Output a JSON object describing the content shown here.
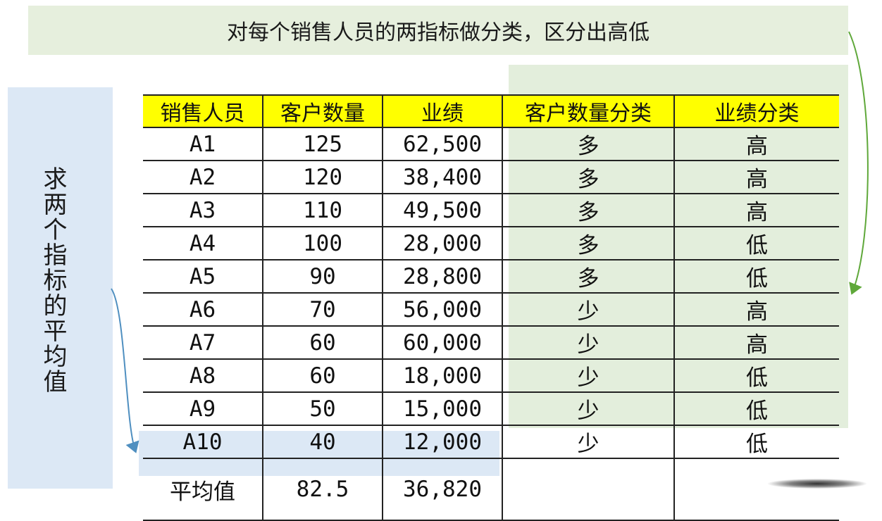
{
  "title": "对每个销售人员的两指标做分类，区分出高低",
  "side_note": "求两个指标的平均值",
  "table": {
    "headers": [
      "销售人员",
      "客户数量",
      "业绩",
      "客户数量分类",
      "业绩分类"
    ],
    "rows": [
      [
        "A1",
        "125",
        "62,500",
        "多",
        "高"
      ],
      [
        "A2",
        "120",
        "38,400",
        "多",
        "高"
      ],
      [
        "A3",
        "110",
        "49,500",
        "多",
        "高"
      ],
      [
        "A4",
        "100",
        "28,000",
        "多",
        "低"
      ],
      [
        "A5",
        "90",
        "28,800",
        "多",
        "低"
      ],
      [
        "A6",
        "70",
        "56,000",
        "少",
        "高"
      ],
      [
        "A7",
        "60",
        "60,000",
        "少",
        "高"
      ],
      [
        "A8",
        "60",
        "18,000",
        "少",
        "低"
      ],
      [
        "A9",
        "50",
        "15,000",
        "少",
        "低"
      ],
      [
        "A10",
        "40",
        "12,000",
        "少",
        "低"
      ]
    ],
    "average_row": {
      "label": "平均值",
      "customer_count": "82.5",
      "performance": "36,820"
    }
  },
  "colors": {
    "header_yellow": "#ffff00",
    "banner_green": "#e6efdd",
    "panel_blue": "#dce8f5",
    "arrow_blue": "#4f8fc0",
    "arrow_green": "#5fa83a"
  }
}
